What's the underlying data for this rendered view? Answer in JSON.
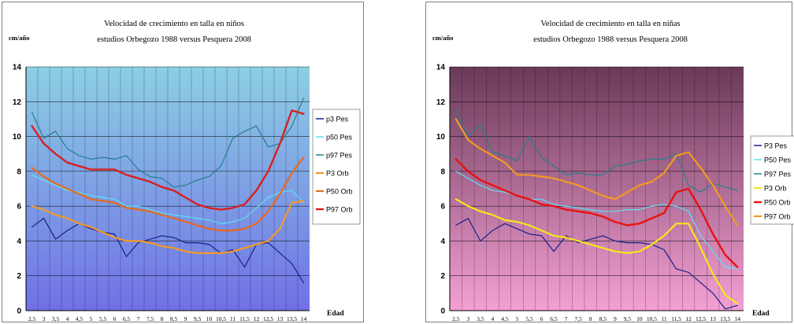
{
  "chart_data": [
    {
      "type": "line",
      "title": [
        "Velocidad de crecimiento en talla en niños",
        "estudios Orbegozo 1988 versus Pesquera 2008"
      ],
      "ylabel": "cm/año",
      "xlabel": "Edad",
      "ylim": [
        0,
        14
      ],
      "yticks": [
        "0",
        "2",
        "4",
        "6",
        "8",
        "10",
        "12",
        "14"
      ],
      "x": [
        "2,5",
        "3",
        "3,5",
        "4",
        "4,5",
        "5",
        "5,5",
        "6",
        "6,5",
        "7",
        "7,5",
        "8",
        "8,5",
        "9",
        "9,5",
        "10",
        "10,5",
        "11",
        "11,5",
        "12",
        "12,5",
        "13",
        "13,5",
        "14"
      ],
      "grid": true,
      "legend": "right",
      "background": {
        "top": "#8ccfe3",
        "bottom": "#7070e6"
      },
      "series": [
        {
          "name": "p3 Pes",
          "color": "#17208a",
          "width": 1.2,
          "values": [
            4.8,
            5.3,
            4.1,
            4.6,
            5.0,
            4.7,
            4.5,
            4.4,
            3.1,
            3.9,
            4.1,
            4.3,
            4.2,
            3.9,
            3.9,
            3.8,
            3.3,
            3.5,
            2.5,
            3.8,
            3.9,
            3.3,
            2.7,
            1.6
          ]
        },
        {
          "name": "p50 Pes",
          "color": "#5fe0f2",
          "width": 1.2,
          "values": [
            7.8,
            7.5,
            7.2,
            6.9,
            6.8,
            6.6,
            6.5,
            6.4,
            6.0,
            6.0,
            5.8,
            5.6,
            5.5,
            5.4,
            5.3,
            5.2,
            5.0,
            5.1,
            5.3,
            5.9,
            6.5,
            6.8,
            6.9,
            6.2
          ]
        },
        {
          "name": "p97 Pes",
          "color": "#227f8c",
          "width": 1.2,
          "values": [
            11.4,
            9.9,
            10.3,
            9.3,
            8.9,
            8.7,
            8.8,
            8.7,
            8.9,
            8.1,
            7.7,
            7.6,
            7.1,
            7.2,
            7.5,
            7.7,
            8.3,
            9.9,
            10.3,
            10.6,
            9.4,
            9.6,
            10.6,
            12.2
          ]
        },
        {
          "name": "P3 Orb",
          "color": "#f2992a",
          "width": 2.2,
          "values": [
            6.0,
            5.8,
            5.5,
            5.3,
            5.0,
            4.8,
            4.5,
            4.2,
            4.0,
            4.0,
            3.9,
            3.7,
            3.6,
            3.4,
            3.3,
            3.3,
            3.3,
            3.4,
            3.6,
            3.8,
            4.0,
            4.7,
            6.2,
            6.3
          ]
        },
        {
          "name": "P50 Orb",
          "color": "#e66a1e",
          "width": 2.2,
          "values": [
            8.2,
            7.7,
            7.3,
            7.0,
            6.7,
            6.4,
            6.3,
            6.2,
            5.9,
            5.8,
            5.7,
            5.5,
            5.3,
            5.1,
            4.9,
            4.7,
            4.6,
            4.6,
            4.7,
            5.0,
            5.7,
            6.7,
            7.9,
            8.8
          ]
        },
        {
          "name": "P97 Orb",
          "color": "#d81f1f",
          "width": 2.4,
          "values": [
            10.6,
            9.6,
            9.0,
            8.5,
            8.3,
            8.1,
            8.1,
            8.1,
            7.8,
            7.6,
            7.4,
            7.1,
            6.9,
            6.5,
            6.1,
            5.9,
            5.8,
            5.9,
            6.1,
            6.9,
            8.0,
            9.6,
            11.5,
            11.3
          ]
        }
      ]
    },
    {
      "type": "line",
      "title": [
        "Velocidad de crecimiento en talla en niñas",
        "estudios Orbegozo 1988 versus Pesquera 2008"
      ],
      "ylabel": "cm/año",
      "xlabel": "Edad",
      "ylim": [
        0,
        14
      ],
      "yticks": [
        "0",
        "2",
        "4",
        "6",
        "8",
        "10",
        "12",
        "14"
      ],
      "x": [
        "2,5",
        "3",
        "3,5",
        "4",
        "4,5",
        "5",
        "5,5",
        "6",
        "6,5",
        "7",
        "7,5",
        "8",
        "8,5",
        "9",
        "9,5",
        "10",
        "10,5",
        "11",
        "11,5",
        "12",
        "12,5",
        "13",
        "13,5",
        "14"
      ],
      "grid": true,
      "legend": "right",
      "background": {
        "top": "#6a3a58",
        "bottom": "#f4a0d4"
      },
      "series": [
        {
          "name": "P3 Pes",
          "color": "#17208a",
          "width": 1.2,
          "values": [
            4.9,
            5.3,
            4.0,
            4.6,
            5.0,
            4.7,
            4.4,
            4.3,
            3.4,
            4.3,
            3.9,
            4.1,
            4.3,
            4.0,
            3.9,
            3.9,
            3.8,
            3.5,
            2.4,
            2.2,
            1.6,
            1.0,
            0.1,
            0.3
          ]
        },
        {
          "name": "P50 Pes",
          "color": "#5fe0f2",
          "width": 1.2,
          "values": [
            8.0,
            7.6,
            7.2,
            6.9,
            6.8,
            6.6,
            6.4,
            6.4,
            6.1,
            6.0,
            5.9,
            5.8,
            5.7,
            5.7,
            5.8,
            5.8,
            6.0,
            6.1,
            6.0,
            5.7,
            4.3,
            3.4,
            2.5,
            2.4
          ]
        },
        {
          "name": "P97 Pes",
          "color": "#227f8c",
          "width": 1.2,
          "values": [
            11.5,
            10.0,
            10.7,
            9.1,
            8.9,
            8.6,
            10.0,
            8.8,
            8.3,
            7.8,
            7.9,
            7.8,
            7.8,
            8.3,
            8.4,
            8.6,
            8.7,
            8.7,
            9.0,
            7.2,
            6.8,
            7.3,
            7.1,
            6.9
          ]
        },
        {
          "name": "P3 Orb",
          "color": "#f5e71c",
          "width": 2.2,
          "values": [
            6.4,
            6.0,
            5.7,
            5.5,
            5.2,
            5.1,
            4.9,
            4.6,
            4.3,
            4.2,
            4.0,
            3.8,
            3.6,
            3.4,
            3.3,
            3.4,
            3.8,
            4.3,
            5.0,
            5.0,
            3.6,
            2.1,
            0.9,
            0.4
          ]
        },
        {
          "name": "P50 Orb",
          "color": "#e81212",
          "width": 2.4,
          "values": [
            8.7,
            8.0,
            7.5,
            7.2,
            6.9,
            6.6,
            6.4,
            6.1,
            6.0,
            5.8,
            5.7,
            5.6,
            5.4,
            5.1,
            4.9,
            5.0,
            5.3,
            5.6,
            6.8,
            7.0,
            5.8,
            4.4,
            3.2,
            2.5
          ]
        },
        {
          "name": "P97 Orb",
          "color": "#f29a22",
          "width": 2.2,
          "values": [
            11.0,
            9.8,
            9.3,
            8.9,
            8.5,
            7.8,
            7.8,
            7.7,
            7.6,
            7.4,
            7.2,
            6.9,
            6.6,
            6.4,
            6.8,
            7.2,
            7.4,
            7.9,
            8.9,
            9.1,
            8.2,
            7.2,
            6.0,
            4.9
          ]
        }
      ]
    }
  ]
}
